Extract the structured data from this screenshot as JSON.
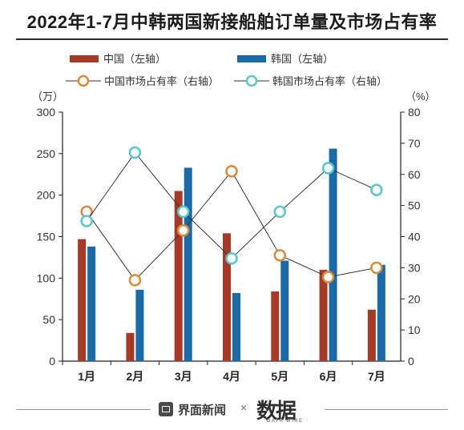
{
  "title": "2022年1-7月中韩两国新接船舶订单量及市场占有率",
  "legend": {
    "china_bar": "中国（左轴）",
    "korea_bar": "韩国（左轴）",
    "china_share": "中国市场占有率（右轴）",
    "korea_share": "韩国市场占有率（右轴）"
  },
  "colors": {
    "china": "#a63a26",
    "korea": "#1a6aa8",
    "china_marker": "#d98a3c",
    "korea_marker": "#57c7cc",
    "line": "#333333"
  },
  "chart_data": {
    "type": "bar",
    "categories": [
      "1月",
      "2月",
      "3月",
      "4月",
      "5月",
      "6月",
      "7月"
    ],
    "y_left_unit": "（万）",
    "y_right_unit": "（%）",
    "y_left_lim": [
      0,
      300
    ],
    "y_left_ticks": [
      0,
      50,
      100,
      150,
      200,
      250,
      300
    ],
    "y_right_lim": [
      0,
      80
    ],
    "y_right_ticks": [
      0,
      10,
      20,
      30,
      40,
      50,
      60,
      70,
      80
    ],
    "series": [
      {
        "name": "中国（左轴）",
        "type": "bar",
        "axis": "left",
        "values": [
          147,
          34,
          205,
          154,
          84,
          110,
          62
        ]
      },
      {
        "name": "韩国（左轴）",
        "type": "bar",
        "axis": "left",
        "values": [
          138,
          86,
          233,
          82,
          121,
          256,
          116
        ]
      },
      {
        "name": "中国市场占有率（右轴）",
        "type": "line",
        "axis": "right",
        "values": [
          48,
          26,
          42,
          61,
          34,
          27,
          30
        ]
      },
      {
        "name": "韩国市场占有率（右轴）",
        "type": "line",
        "axis": "right",
        "values": [
          45,
          67,
          48,
          33,
          48,
          62,
          55
        ]
      }
    ]
  },
  "footer": {
    "brand": "界面新闻",
    "separator": "×",
    "partner": "数据"
  }
}
